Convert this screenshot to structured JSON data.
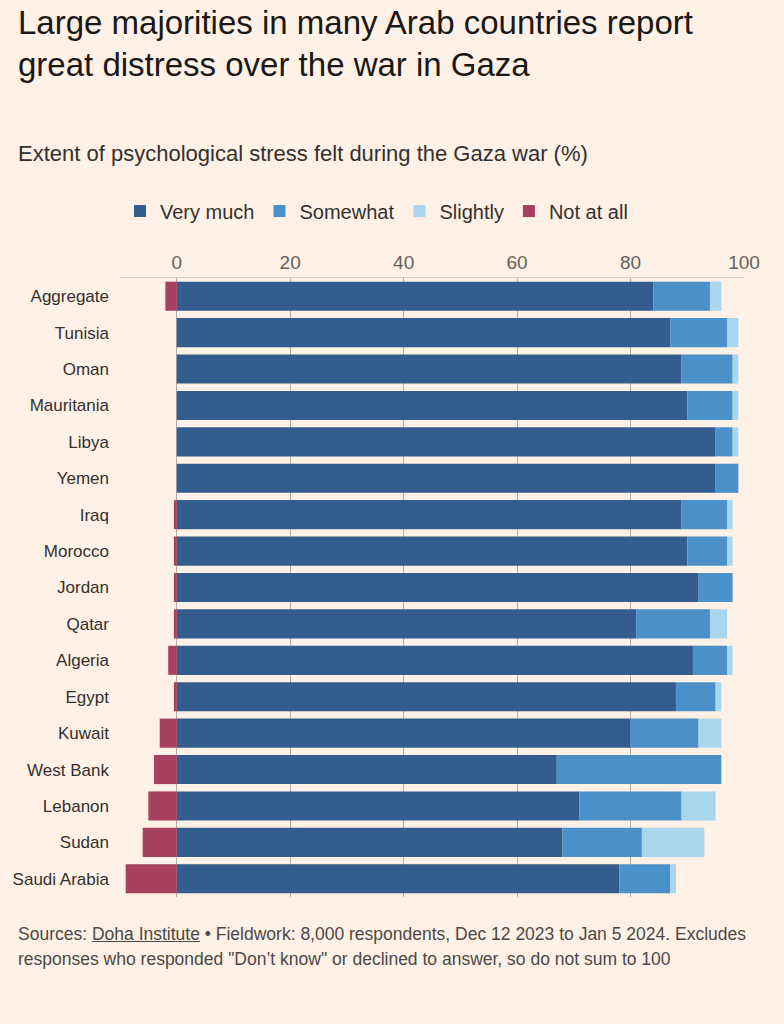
{
  "chart_data": {
    "type": "bar",
    "title": "Large majorities in many Arab countries report great distress over the war in Gaza",
    "subtitle": "Extent of psychological stress felt during the Gaza war (%)",
    "orientation": "horizontal",
    "stacked": true,
    "grid": true,
    "legend": "top left",
    "categories": [
      "Aggregate",
      "Tunisia",
      "Oman",
      "Mauritania",
      "Libya",
      "Yemen",
      "Iraq",
      "Morocco",
      "Jordan",
      "Qatar",
      "Algeria",
      "Egypt",
      "Kuwait",
      "West Bank",
      "Lebanon",
      "Sudan",
      "Saudi Arabia"
    ],
    "series": [
      {
        "name": "Very much",
        "color": "#335d8f",
        "values": [
          84,
          87,
          89,
          90,
          95,
          95,
          89,
          90,
          92,
          81,
          91,
          88,
          80,
          67,
          71,
          68,
          78
        ]
      },
      {
        "name": "Somewhat",
        "color": "#4a90c9",
        "values": [
          10,
          10,
          9,
          8,
          3,
          4,
          8,
          7,
          6,
          13,
          6,
          7,
          12,
          29,
          18,
          14,
          9
        ]
      },
      {
        "name": "Slightly",
        "color": "#a9d6ec",
        "values": [
          2,
          2,
          1,
          1,
          1,
          0,
          1,
          1,
          0,
          3,
          1,
          1,
          4,
          0,
          6,
          11,
          1
        ]
      },
      {
        "name": "Not at all",
        "color": "#a8405f",
        "values": [
          -2,
          0,
          0,
          0,
          0,
          0,
          -0.5,
          -0.5,
          -0.5,
          -0.5,
          -1.5,
          -0.5,
          -3,
          -4,
          -5,
          -6,
          -9
        ]
      }
    ],
    "xlim": [
      -10,
      100
    ],
    "xticks": [
      0,
      20,
      40,
      60,
      80,
      100
    ],
    "source_label": "Sources:",
    "source": "Doha Institute",
    "note": "• Fieldwork: 8,000 respondents, Dec 12 2023 to Jan 5 2024. Excludes responses who responded \"Don’t know\" or declined to answer, so do not sum to 100"
  }
}
